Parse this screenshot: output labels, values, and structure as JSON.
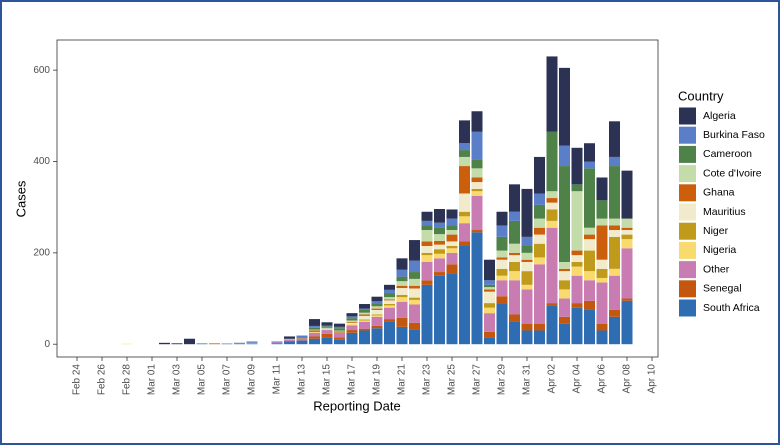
{
  "chart_data": {
    "type": "stacked-bar",
    "x_label": "Reporting Date",
    "y_label": "Cases",
    "legend_title": "Country",
    "categories": [
      "Feb 24",
      null,
      "Feb 26",
      null,
      "Feb 28",
      null,
      "Mar 01",
      null,
      "Mar 03",
      null,
      "Mar 05",
      null,
      "Mar 07",
      null,
      "Mar 09",
      null,
      "Mar 11",
      null,
      "Mar 13",
      null,
      "Mar 15",
      null,
      "Mar 17",
      null,
      "Mar 19",
      null,
      "Mar 21",
      null,
      "Mar 23",
      null,
      "Mar 25",
      null,
      "Mar 27",
      null,
      "Mar 29",
      null,
      "Mar 31",
      null,
      "Apr 02",
      null,
      "Apr 04",
      null,
      "Apr 06",
      null,
      "Apr 08",
      null,
      "Apr 10"
    ],
    "ylim": [
      -28,
      666
    ],
    "yticks": [
      0,
      200,
      400,
      600
    ],
    "grid": false,
    "series": [
      {
        "name": "South Africa",
        "color": "#2f6db3",
        "values": [
          0,
          0,
          0,
          0,
          0,
          0,
          0,
          0,
          0,
          0,
          1,
          0,
          1,
          1,
          1,
          0,
          2,
          5,
          8,
          12,
          15,
          10,
          25,
          30,
          35,
          50,
          38,
          32,
          130,
          150,
          155,
          215,
          245,
          15,
          90,
          50,
          30,
          30,
          85,
          45,
          80,
          75,
          30,
          60,
          95,
          0,
          0
        ]
      },
      {
        "name": "Senegal",
        "color": "#c4570f",
        "values": [
          0,
          0,
          0,
          0,
          0,
          0,
          0,
          0,
          0,
          0,
          1,
          1,
          0,
          0,
          0,
          0,
          0,
          2,
          0,
          5,
          8,
          5,
          6,
          4,
          5,
          5,
          20,
          15,
          10,
          8,
          20,
          10,
          5,
          12,
          15,
          15,
          15,
          15,
          5,
          15,
          10,
          20,
          15,
          15,
          5,
          0,
          0
        ]
      },
      {
        "name": "Other",
        "color": "#c97cb2",
        "values": [
          0,
          0,
          0,
          0,
          0,
          0,
          0,
          0,
          0,
          0,
          0,
          0,
          1,
          1,
          2,
          0,
          2,
          3,
          4,
          8,
          8,
          10,
          10,
          15,
          20,
          25,
          35,
          40,
          40,
          30,
          25,
          40,
          75,
          41,
          35,
          75,
          75,
          130,
          165,
          40,
          60,
          45,
          90,
          75,
          110,
          0,
          0
        ]
      },
      {
        "name": "Nigeria",
        "color": "#f8da6e",
        "values": [
          0,
          0,
          0,
          0,
          1,
          0,
          0,
          0,
          0,
          0,
          0,
          0,
          0,
          0,
          0,
          0,
          0,
          0,
          0,
          2,
          2,
          0,
          3,
          3,
          3,
          5,
          10,
          10,
          15,
          10,
          10,
          15,
          10,
          12,
          10,
          20,
          10,
          15,
          15,
          20,
          20,
          20,
          10,
          15,
          20,
          0,
          0
        ]
      },
      {
        "name": "Niger",
        "color": "#bf9a1b",
        "values": [
          0,
          0,
          0,
          0,
          0,
          0,
          0,
          0,
          0,
          0,
          0,
          0,
          0,
          0,
          0,
          0,
          0,
          0,
          0,
          0,
          0,
          1,
          0,
          2,
          2,
          3,
          5,
          5,
          5,
          10,
          5,
          10,
          5,
          10,
          15,
          20,
          30,
          30,
          25,
          20,
          10,
          45,
          20,
          70,
          10,
          0,
          0
        ]
      },
      {
        "name": "Mauritius",
        "color": "#f1eacb",
        "values": [
          0,
          0,
          0,
          0,
          0,
          0,
          0,
          0,
          0,
          0,
          0,
          0,
          0,
          0,
          0,
          0,
          0,
          0,
          0,
          0,
          0,
          0,
          3,
          8,
          10,
          8,
          15,
          20,
          15,
          10,
          10,
          40,
          15,
          25,
          20,
          15,
          20,
          20,
          15,
          20,
          15,
          25,
          20,
          15,
          10,
          0,
          0
        ]
      },
      {
        "name": "Ghana",
        "color": "#cc5f0c",
        "values": [
          0,
          0,
          0,
          0,
          0,
          0,
          0,
          0,
          0,
          0,
          0,
          0,
          0,
          0,
          0,
          0,
          0,
          0,
          1,
          3,
          0,
          2,
          2,
          3,
          3,
          2,
          5,
          6,
          10,
          8,
          15,
          60,
          10,
          5,
          5,
          5,
          5,
          15,
          10,
          5,
          10,
          10,
          75,
          10,
          5,
          0,
          0
        ]
      },
      {
        "name": "Cote d'Ivoire",
        "color": "#c4dca9",
        "values": [
          0,
          0,
          0,
          0,
          0,
          0,
          0,
          0,
          0,
          0,
          0,
          0,
          0,
          0,
          0,
          0,
          0,
          1,
          0,
          2,
          3,
          2,
          3,
          4,
          5,
          5,
          10,
          15,
          25,
          15,
          10,
          20,
          20,
          5,
          15,
          20,
          15,
          20,
          15,
          15,
          130,
          15,
          15,
          15,
          20,
          0,
          0
        ]
      },
      {
        "name": "Cameroon",
        "color": "#4f8249",
        "values": [
          0,
          0,
          0,
          0,
          0,
          0,
          0,
          0,
          0,
          0,
          0,
          1,
          0,
          0,
          0,
          0,
          0,
          1,
          2,
          4,
          3,
          5,
          5,
          6,
          6,
          8,
          10,
          15,
          10,
          15,
          10,
          15,
          20,
          5,
          30,
          50,
          15,
          30,
          130,
          210,
          15,
          130,
          40,
          115,
          0,
          0,
          0
        ]
      },
      {
        "name": "Burkina Faso",
        "color": "#5a7fc8",
        "values": [
          0,
          0,
          0,
          0,
          0,
          0,
          0,
          0,
          0,
          0,
          0,
          0,
          0,
          0,
          3,
          0,
          2,
          0,
          4,
          4,
          2,
          3,
          4,
          3,
          5,
          8,
          15,
          25,
          10,
          10,
          15,
          15,
          60,
          10,
          25,
          20,
          20,
          25,
          0,
          45,
          0,
          15,
          0,
          20,
          0,
          0,
          0
        ]
      },
      {
        "name": "Algeria",
        "color": "#2b3253",
        "values": [
          0,
          0,
          0,
          0,
          0,
          0,
          0,
          3,
          2,
          12,
          0,
          0,
          0,
          1,
          0,
          0,
          0,
          5,
          0,
          15,
          7,
          7,
          7,
          10,
          10,
          11,
          25,
          45,
          20,
          30,
          20,
          50,
          45,
          45,
          30,
          60,
          105,
          80,
          165,
          170,
          80,
          40,
          50,
          78,
          105,
          0,
          0
        ]
      }
    ]
  }
}
